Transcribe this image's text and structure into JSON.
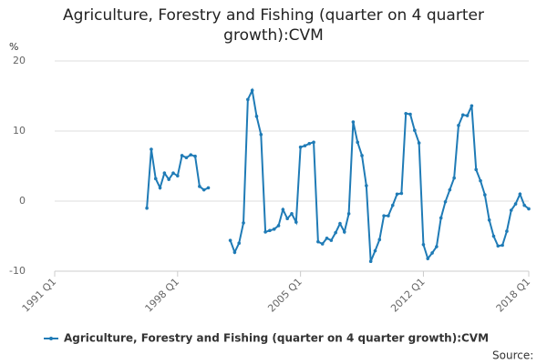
{
  "chart_data": {
    "type": "line",
    "title": "Agriculture, Forestry and Fishing (quarter on 4 quarter growth):CVM",
    "y_label": "%",
    "source": "Source:",
    "categories": [
      "1991 Q1",
      null,
      null,
      null,
      null,
      null,
      null,
      null,
      null,
      null,
      null,
      null,
      null,
      null,
      null,
      null,
      null,
      null,
      null,
      null,
      null,
      null,
      null,
      null,
      null,
      null,
      null,
      null,
      "1998 Q1",
      null,
      null,
      null,
      null,
      null,
      null,
      null,
      null,
      null,
      null,
      null,
      null,
      null,
      null,
      null,
      null,
      null,
      null,
      null,
      null,
      null,
      null,
      null,
      null,
      null,
      null,
      null,
      "2005 Q1",
      null,
      null,
      null,
      null,
      null,
      null,
      null,
      null,
      null,
      null,
      null,
      null,
      null,
      null,
      null,
      null,
      null,
      null,
      null,
      null,
      null,
      null,
      null,
      null,
      null,
      null,
      null,
      "2012 Q1",
      null,
      null,
      null,
      null,
      null,
      null,
      null,
      null,
      null,
      null,
      null,
      null,
      null,
      null,
      null,
      null,
      null,
      null,
      null,
      null,
      null,
      null,
      null,
      "2018 Q1"
    ],
    "series": [
      {
        "name": "Agriculture, Forestry and Fishing (quarter on 4 quarter growth):CVM",
        "color": "#1f7bb6",
        "values": [
          null,
          null,
          null,
          null,
          null,
          null,
          null,
          null,
          null,
          null,
          null,
          null,
          null,
          null,
          null,
          null,
          null,
          null,
          null,
          null,
          null,
          -1.0,
          7.4,
          3.2,
          1.9,
          4.0,
          3.1,
          4.0,
          3.6,
          6.5,
          6.2,
          6.6,
          6.4,
          2.1,
          1.6,
          1.9,
          null,
          null,
          null,
          null,
          -5.6,
          -7.3,
          -6.0,
          -3.1,
          14.5,
          15.8,
          12.1,
          9.5,
          -4.4,
          -4.2,
          -4.0,
          -3.5,
          -1.2,
          -2.5,
          -1.8,
          -3.0,
          7.7,
          7.9,
          8.2,
          8.4,
          -5.8,
          -6.1,
          -5.3,
          -5.6,
          -4.5,
          -3.2,
          -4.4,
          -1.8,
          11.3,
          8.4,
          6.5,
          2.2,
          -8.6,
          -7.1,
          -5.5,
          -2.1,
          -2.1,
          -0.6,
          1.0,
          1.1,
          12.5,
          12.4,
          10.1,
          8.3,
          -6.2,
          -8.2,
          -7.4,
          -6.5,
          -2.4,
          -0.1,
          1.6,
          3.3,
          10.8,
          12.3,
          12.2,
          13.6,
          4.5,
          2.9,
          0.9,
          -2.7,
          -5.0,
          -6.4,
          -6.3,
          -4.3,
          -1.3,
          -0.4,
          1.0,
          -0.6,
          -1.1
        ]
      }
    ],
    "ylim": [
      -10,
      20
    ],
    "yticks": [
      -10,
      0,
      10,
      20
    ],
    "grid": true
  }
}
